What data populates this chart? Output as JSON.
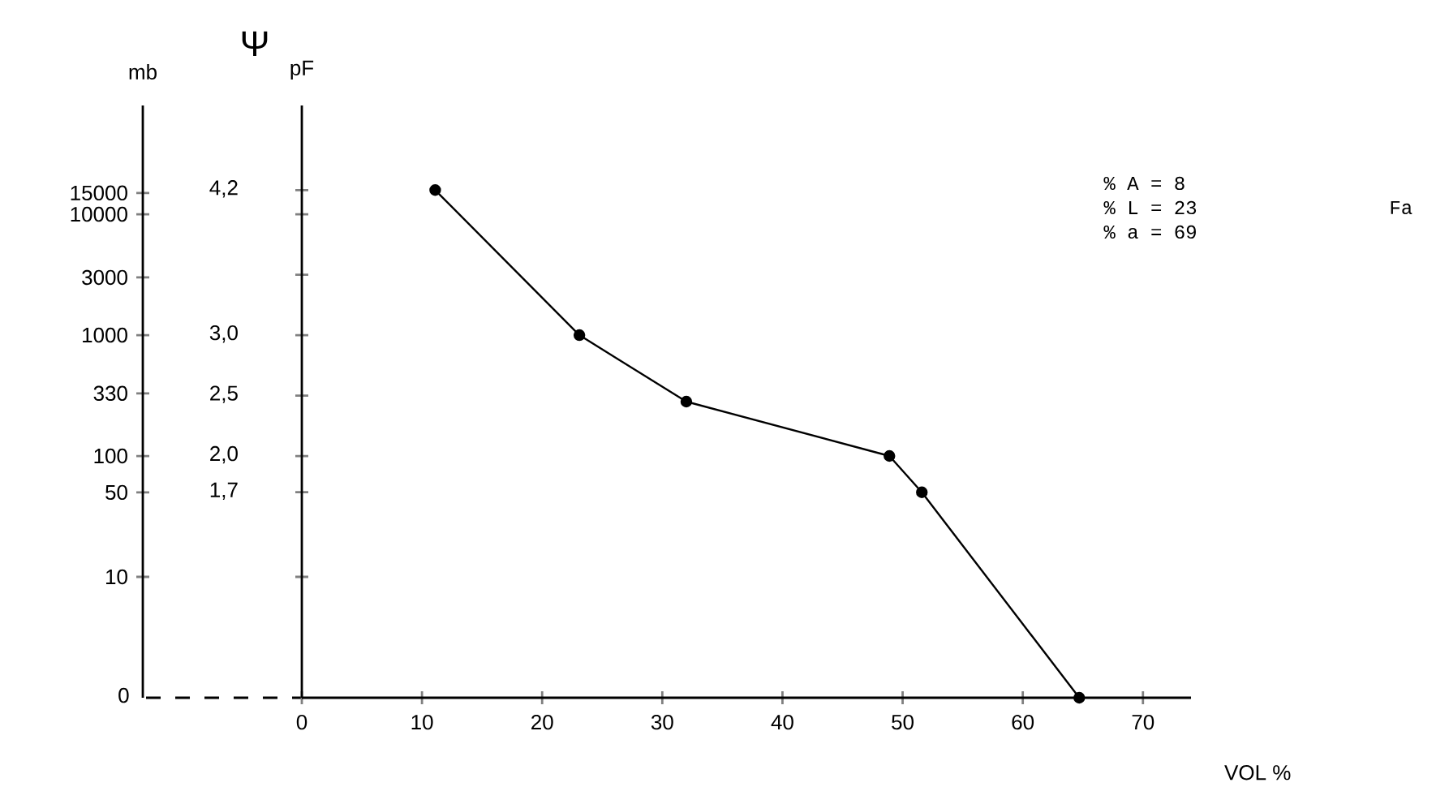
{
  "chart_data": {
    "type": "line",
    "x": [
      11.1,
      23.1,
      32.0,
      48.9,
      51.6,
      64.7
    ],
    "values": [
      4.2,
      3.0,
      2.45,
      2.0,
      1.7,
      0
    ],
    "color": "#000000",
    "marker": "circle",
    "line_style": "solid",
    "xlabel": "VOL %",
    "ylabel": "pF",
    "y2label": "mb",
    "xlim": [
      0,
      74
    ],
    "xticks": [
      0,
      10,
      20,
      30,
      40,
      50,
      60,
      70
    ],
    "ylim": [
      0,
      4.9
    ],
    "yticks": [
      {
        "value": 4.2,
        "label": "4,2"
      },
      {
        "value": 4.0,
        "label": null
      },
      {
        "value": 3.5,
        "label": null
      },
      {
        "value": 3.0,
        "label": "3,0"
      },
      {
        "value": 2.5,
        "label": "2,5"
      },
      {
        "value": 2.0,
        "label": "2,0"
      },
      {
        "value": 1.7,
        "label": "1,7"
      },
      {
        "value": 1.0,
        "label": null
      }
    ],
    "log": "y2",
    "y2lim": [
      0,
      79433
    ],
    "y2ticks": [
      15000,
      10000,
      3000,
      1000,
      330,
      100,
      50,
      10,
      0
    ],
    "annotations": [
      "Ψ",
      "% A =  8",
      "% L = 23",
      "% a = 69",
      "Fa"
    ]
  }
}
